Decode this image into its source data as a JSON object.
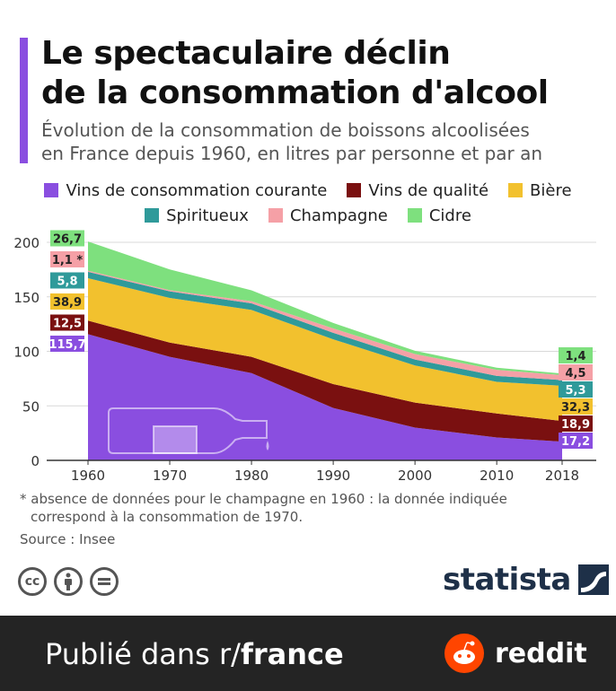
{
  "title_line1": "Le spectaculaire déclin",
  "title_line2": "de la consommation d'alcool",
  "subtitle_line1": "Évolution de la consommation de boissons alcoolisées",
  "subtitle_line2": "en France depuis 1960, en litres par personne et par an",
  "note_line1": "* absence de données pour le champagne en 1960 : la donnée indiquée",
  "note_line2": "correspond à la consommation de 1970.",
  "source": "Source : Insee",
  "brand": "statista",
  "footer": {
    "prefix": "Publié dans r/",
    "subreddit": "france",
    "reddit_label": "reddit"
  },
  "cc_icons": [
    "cc-icon",
    "attribution-icon",
    "no-derivatives-icon"
  ],
  "chart_data": {
    "type": "area",
    "stacked": true,
    "x": [
      1960,
      1970,
      1980,
      1990,
      2000,
      2010,
      2018
    ],
    "ylim": [
      0,
      200
    ],
    "yticks": [
      0,
      50,
      100,
      150,
      200
    ],
    "grid": true,
    "legend_position": "top",
    "series": [
      {
        "name": "Vins de consommation courante",
        "color": "#8a4ee0",
        "values": [
          115.7,
          95,
          80,
          48,
          30,
          21,
          17.2
        ]
      },
      {
        "name": "Vins de qualité",
        "color": "#7a1010",
        "values": [
          12.5,
          13,
          15,
          22,
          23,
          22,
          18.9
        ]
      },
      {
        "name": "Bière",
        "color": "#f2c12e",
        "values": [
          38.9,
          41,
          43,
          41,
          34,
          29,
          32.3
        ]
      },
      {
        "name": "Spiritueux",
        "color": "#2f9a9a",
        "values": [
          5.8,
          6,
          6,
          6,
          5.5,
          5.5,
          5.3
        ]
      },
      {
        "name": "Champagne",
        "color": "#f5a0a6",
        "values": [
          1.1,
          1.1,
          2,
          4,
          5,
          5.5,
          4.5
        ]
      },
      {
        "name": "Cidre",
        "color": "#7ee07e",
        "values": [
          26.7,
          19,
          10,
          5,
          3,
          2,
          1.4
        ]
      }
    ],
    "labels_1960": [
      "115,7",
      "12,5",
      "38,9",
      "5,8",
      "1,1 *",
      "26,7"
    ],
    "labels_2018": [
      "17,2",
      "18,9",
      "32,3",
      "5,3",
      "4,5",
      "1,4"
    ]
  }
}
